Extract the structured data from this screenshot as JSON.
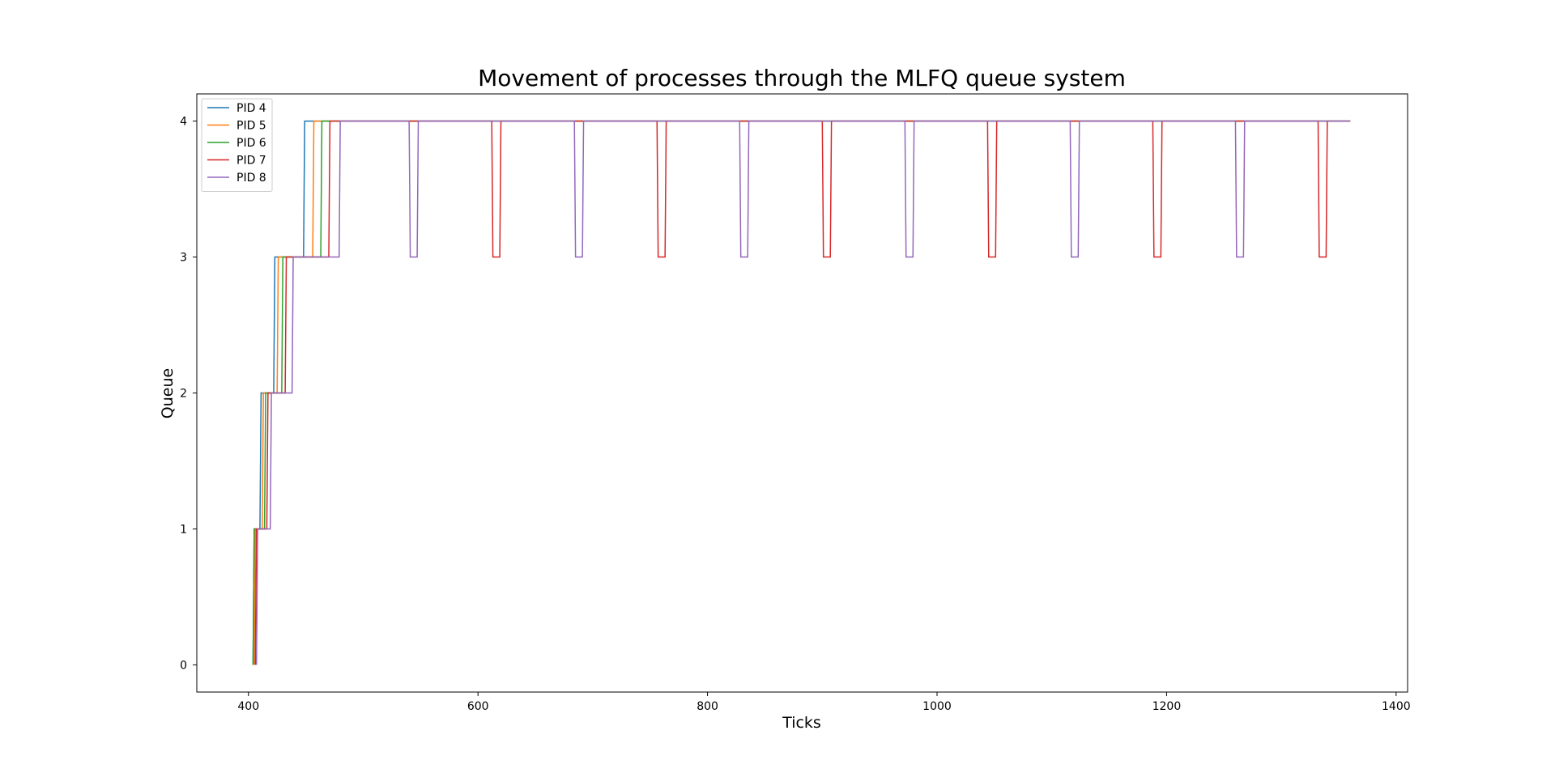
{
  "chart_data": {
    "type": "line",
    "title": "Movement of processes through the MLFQ queue system",
    "xlabel": "Ticks",
    "ylabel": "Queue",
    "xlim": [
      355,
      1410
    ],
    "ylim": [
      -0.2,
      4.2
    ],
    "xticks": [
      400,
      600,
      800,
      1000,
      1200,
      1400
    ],
    "yticks": [
      0,
      1,
      2,
      3,
      4
    ],
    "grid": false,
    "legend_position": "top-left",
    "series": [
      {
        "name": "PID 4",
        "color": "#1f77b4",
        "x": [
          404,
          405,
          410,
          411,
          422,
          423,
          448,
          449,
          1360
        ],
        "y": [
          0,
          1,
          1,
          2,
          2,
          3,
          3,
          4,
          4
        ]
      },
      {
        "name": "PID 5",
        "color": "#ff7f0e",
        "x": [
          405,
          406,
          412,
          413,
          425,
          426,
          456,
          457,
          1360
        ],
        "y": [
          0,
          1,
          1,
          2,
          2,
          3,
          3,
          4,
          4
        ]
      },
      {
        "name": "PID 6",
        "color": "#2ca02c",
        "x": [
          404,
          405,
          414,
          415,
          429,
          430,
          463,
          464,
          1360
        ],
        "y": [
          0,
          1,
          1,
          2,
          2,
          3,
          3,
          4,
          4
        ]
      },
      {
        "name": "PID 7",
        "color": "#d62728",
        "x": [
          406,
          407,
          416,
          417,
          432,
          433,
          470,
          471,
          612,
          613,
          619,
          620,
          756,
          757,
          763,
          764,
          900,
          901,
          907,
          908,
          1044,
          1045,
          1051,
          1052,
          1188,
          1189,
          1195,
          1196,
          1332,
          1333,
          1339,
          1340,
          1360
        ],
        "y": [
          0,
          1,
          1,
          2,
          2,
          3,
          3,
          4,
          4,
          3,
          3,
          4,
          4,
          3,
          3,
          4,
          4,
          3,
          3,
          4,
          4,
          3,
          3,
          4,
          4,
          3,
          3,
          4,
          4,
          3,
          3,
          4,
          4
        ]
      },
      {
        "name": "PID 8",
        "color": "#9467bd",
        "x": [
          407,
          408,
          419,
          420,
          438,
          439,
          479,
          480,
          540,
          541,
          547,
          548,
          684,
          685,
          691,
          692,
          828,
          829,
          835,
          836,
          972,
          973,
          979,
          980,
          1116,
          1117,
          1123,
          1124,
          1260,
          1261,
          1267,
          1268,
          1360
        ],
        "y": [
          0,
          1,
          1,
          2,
          2,
          3,
          3,
          4,
          4,
          3,
          3,
          4,
          4,
          3,
          3,
          4,
          4,
          3,
          3,
          4,
          4,
          3,
          3,
          4,
          4,
          3,
          3,
          4,
          4,
          3,
          3,
          4,
          4
        ]
      }
    ]
  }
}
